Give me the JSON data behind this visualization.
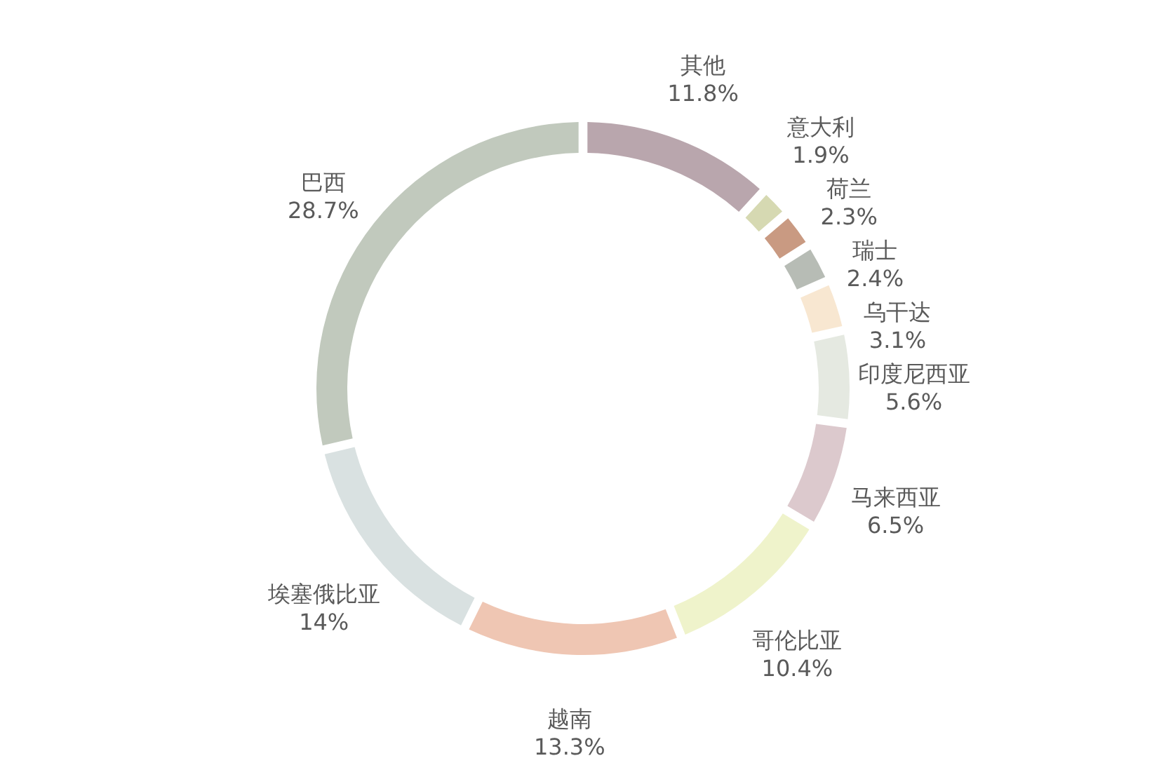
{
  "chart_data": {
    "type": "donut",
    "categories": [
      "其他",
      "意大利",
      "荷兰",
      "瑞士",
      "乌干达",
      "印度尼西亚",
      "马来西亚",
      "哥伦比亚",
      "越南",
      "埃塞俄比亚",
      "巴西"
    ],
    "values": [
      11.8,
      1.9,
      2.3,
      2.4,
      3.1,
      5.6,
      6.5,
      10.4,
      13.3,
      14,
      28.7
    ],
    "value_labels": [
      "11.8%",
      "1.9%",
      "2.3%",
      "2.4%",
      "3.1%",
      "5.6%",
      "6.5%",
      "10.4%",
      "13.3%",
      "14%",
      "28.7%"
    ],
    "colors": [
      "#b9a6ad",
      "#d6d9b2",
      "#c99a82",
      "#b7bcb5",
      "#f8e7d1",
      "#e5e9e1",
      "#dcc9cd",
      "#eff3cb",
      "#efc6b3",
      "#d9e1e1",
      "#c1c9bd"
    ]
  }
}
